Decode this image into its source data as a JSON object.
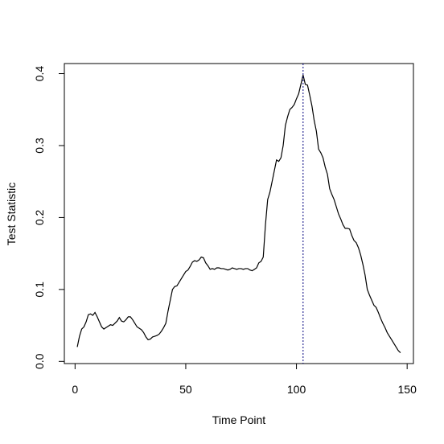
{
  "chart_data": {
    "type": "line",
    "xlabel": "Time  Point",
    "ylabel": "Test  Statistic",
    "x": [
      1,
      2,
      3,
      4,
      5,
      6,
      7,
      8,
      9,
      10,
      11,
      12,
      13,
      14,
      15,
      16,
      17,
      18,
      19,
      20,
      21,
      22,
      23,
      24,
      25,
      26,
      27,
      28,
      29,
      30,
      31,
      32,
      33,
      34,
      35,
      36,
      37,
      38,
      39,
      40,
      41,
      42,
      43,
      44,
      45,
      46,
      47,
      48,
      49,
      50,
      51,
      52,
      53,
      54,
      55,
      56,
      57,
      58,
      59,
      60,
      61,
      62,
      63,
      64,
      65,
      66,
      67,
      68,
      69,
      70,
      71,
      72,
      73,
      74,
      75,
      76,
      77,
      78,
      79,
      80,
      81,
      82,
      83,
      84,
      85,
      86,
      87,
      88,
      89,
      90,
      91,
      92,
      93,
      94,
      95,
      96,
      97,
      98,
      99,
      100,
      101,
      102,
      103,
      104,
      105,
      106,
      107,
      108,
      109,
      110,
      111,
      112,
      113,
      114,
      115,
      116,
      117,
      118,
      119,
      120,
      121,
      122,
      123,
      124,
      125,
      126,
      127,
      128,
      129,
      130,
      131,
      132,
      133,
      134,
      135,
      136,
      137,
      138,
      139,
      140,
      141,
      142,
      143,
      144,
      145,
      146,
      147
    ],
    "values": [
      0.02,
      0.035,
      0.045,
      0.048,
      0.055,
      0.065,
      0.066,
      0.064,
      0.068,
      0.062,
      0.055,
      0.048,
      0.045,
      0.047,
      0.049,
      0.051,
      0.05,
      0.053,
      0.056,
      0.061,
      0.056,
      0.055,
      0.058,
      0.062,
      0.062,
      0.058,
      0.053,
      0.048,
      0.046,
      0.044,
      0.04,
      0.034,
      0.03,
      0.031,
      0.034,
      0.035,
      0.036,
      0.038,
      0.042,
      0.047,
      0.053,
      0.07,
      0.085,
      0.1,
      0.104,
      0.105,
      0.11,
      0.115,
      0.12,
      0.125,
      0.127,
      0.132,
      0.138,
      0.14,
      0.139,
      0.141,
      0.145,
      0.144,
      0.137,
      0.133,
      0.128,
      0.129,
      0.128,
      0.13,
      0.13,
      0.129,
      0.129,
      0.128,
      0.127,
      0.128,
      0.13,
      0.129,
      0.128,
      0.129,
      0.129,
      0.128,
      0.129,
      0.129,
      0.127,
      0.126,
      0.128,
      0.13,
      0.137,
      0.139,
      0.145,
      0.19,
      0.225,
      0.235,
      0.25,
      0.265,
      0.28,
      0.278,
      0.283,
      0.3,
      0.328,
      0.34,
      0.35,
      0.353,
      0.357,
      0.365,
      0.372,
      0.385,
      0.398,
      0.385,
      0.384,
      0.37,
      0.355,
      0.335,
      0.32,
      0.295,
      0.29,
      0.283,
      0.27,
      0.26,
      0.24,
      0.232,
      0.225,
      0.215,
      0.205,
      0.198,
      0.19,
      0.185,
      0.185,
      0.184,
      0.175,
      0.168,
      0.165,
      0.158,
      0.148,
      0.135,
      0.12,
      0.1,
      0.092,
      0.085,
      0.078,
      0.075,
      0.068,
      0.06,
      0.053,
      0.047,
      0.04,
      0.035,
      0.03,
      0.025,
      0.02,
      0.015,
      0.012
    ],
    "color": "#000000",
    "vline": 103,
    "vline_color": "#000080",
    "xlim": [
      -4.84,
      152.84
    ],
    "ylim": [
      -0.003,
      0.414
    ],
    "xticks": [
      0,
      50,
      100,
      150
    ],
    "yticks": [
      {
        "value": 0,
        "label": "0.0"
      },
      0.1,
      0.2,
      0.3,
      0.4
    ]
  }
}
